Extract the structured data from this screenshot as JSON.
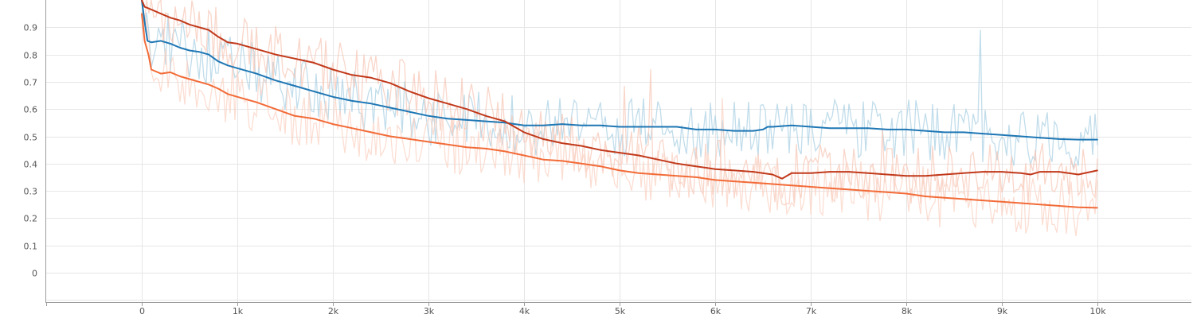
{
  "chart_data": {
    "type": "line",
    "xlabel": "",
    "ylabel": "",
    "xlim": [
      -1000,
      11000
    ],
    "ylim": [
      -0.1,
      1.0
    ],
    "x_ticks": [
      0,
      1000,
      2000,
      3000,
      4000,
      5000,
      6000,
      7000,
      8000,
      9000,
      10000
    ],
    "x_tick_labels": [
      "0",
      "1k",
      "2k",
      "3k",
      "4k",
      "5k",
      "6k",
      "7k",
      "8k",
      "9k",
      "10k"
    ],
    "y_ticks": [
      0,
      0.1,
      0.2,
      0.3,
      0.4,
      0.5,
      0.6,
      0.7,
      0.8,
      0.9
    ],
    "y_tick_labels": [
      "0",
      "0.1",
      "0.2",
      "0.3",
      "0.4",
      "0.5",
      "0.6",
      "0.7",
      "0.8",
      "0.9"
    ],
    "grid": true,
    "series": [
      {
        "color": "#1f77b4",
        "raw_color": "#a6cee3",
        "x": [
          0,
          30,
          60,
          100,
          200,
          300,
          400,
          500,
          600,
          700,
          800,
          900,
          1000,
          1200,
          1400,
          1600,
          1800,
          2000,
          2200,
          2400,
          2600,
          2800,
          3000,
          3200,
          3400,
          3600,
          3800,
          4000,
          4200,
          4400,
          4600,
          4800,
          5000,
          5200,
          5400,
          5600,
          5800,
          6000,
          6200,
          6400,
          6500,
          6550,
          6600,
          6800,
          7000,
          7200,
          7400,
          7600,
          7800,
          8000,
          8200,
          8400,
          8600,
          8800,
          9000,
          9200,
          9400,
          9600,
          9800,
          10000
        ],
        "y": [
          1.0,
          0.92,
          0.85,
          0.845,
          0.85,
          0.84,
          0.825,
          0.815,
          0.81,
          0.8,
          0.775,
          0.76,
          0.75,
          0.73,
          0.705,
          0.685,
          0.665,
          0.645,
          0.63,
          0.62,
          0.605,
          0.59,
          0.575,
          0.565,
          0.56,
          0.555,
          0.55,
          0.54,
          0.54,
          0.545,
          0.54,
          0.54,
          0.535,
          0.535,
          0.535,
          0.535,
          0.525,
          0.525,
          0.52,
          0.52,
          0.525,
          0.535,
          0.535,
          0.54,
          0.535,
          0.53,
          0.53,
          0.53,
          0.525,
          0.525,
          0.52,
          0.515,
          0.515,
          0.51,
          0.505,
          0.5,
          0.495,
          0.49,
          0.488,
          0.488
        ]
      },
      {
        "color": "#c1391b",
        "raw_color": "#f7c4b4",
        "x": [
          0,
          30,
          100,
          200,
          300,
          400,
          500,
          600,
          700,
          800,
          900,
          1000,
          1200,
          1400,
          1600,
          1800,
          2000,
          2200,
          2400,
          2600,
          2800,
          3000,
          3200,
          3400,
          3600,
          3800,
          4000,
          4200,
          4400,
          4600,
          4800,
          5000,
          5200,
          5400,
          5600,
          5800,
          6000,
          6200,
          6400,
          6600,
          6700,
          6800,
          7000,
          7200,
          7400,
          7600,
          7800,
          8000,
          8200,
          8400,
          8600,
          8800,
          9000,
          9200,
          9300,
          9400,
          9600,
          9800,
          10000
        ],
        "y": [
          1.0,
          0.975,
          0.965,
          0.95,
          0.935,
          0.925,
          0.91,
          0.9,
          0.89,
          0.865,
          0.845,
          0.84,
          0.82,
          0.8,
          0.785,
          0.77,
          0.745,
          0.725,
          0.715,
          0.695,
          0.665,
          0.64,
          0.62,
          0.6,
          0.575,
          0.555,
          0.515,
          0.49,
          0.475,
          0.465,
          0.45,
          0.44,
          0.43,
          0.415,
          0.4,
          0.39,
          0.38,
          0.375,
          0.37,
          0.36,
          0.345,
          0.365,
          0.365,
          0.37,
          0.37,
          0.365,
          0.36,
          0.355,
          0.355,
          0.36,
          0.365,
          0.37,
          0.37,
          0.365,
          0.36,
          0.37,
          0.37,
          0.36,
          0.375
        ]
      },
      {
        "color": "#f26b38",
        "raw_color": "#fbd0c0",
        "x": [
          0,
          30,
          70,
          100,
          200,
          300,
          400,
          500,
          600,
          700,
          800,
          900,
          1000,
          1200,
          1400,
          1600,
          1800,
          2000,
          2200,
          2400,
          2600,
          2800,
          3000,
          3200,
          3400,
          3600,
          3800,
          4000,
          4200,
          4400,
          4600,
          4800,
          5000,
          5200,
          5400,
          5600,
          5800,
          6000,
          6200,
          6400,
          6600,
          6800,
          7000,
          7200,
          7400,
          7600,
          7800,
          8000,
          8200,
          8400,
          8600,
          8800,
          9000,
          9200,
          9400,
          9600,
          9800,
          10000
        ],
        "y": [
          0.95,
          0.85,
          0.8,
          0.745,
          0.73,
          0.735,
          0.72,
          0.71,
          0.7,
          0.69,
          0.675,
          0.655,
          0.645,
          0.625,
          0.6,
          0.575,
          0.565,
          0.545,
          0.53,
          0.515,
          0.5,
          0.49,
          0.48,
          0.47,
          0.46,
          0.455,
          0.445,
          0.43,
          0.415,
          0.41,
          0.4,
          0.39,
          0.375,
          0.365,
          0.36,
          0.355,
          0.35,
          0.34,
          0.335,
          0.33,
          0.325,
          0.32,
          0.315,
          0.31,
          0.305,
          0.3,
          0.295,
          0.29,
          0.28,
          0.275,
          0.27,
          0.265,
          0.26,
          0.255,
          0.25,
          0.245,
          0.24,
          0.238
        ]
      }
    ]
  }
}
